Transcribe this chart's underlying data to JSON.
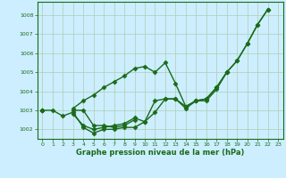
{
  "x": [
    0,
    1,
    2,
    3,
    4,
    5,
    6,
    7,
    8,
    9,
    10,
    11,
    12,
    13,
    14,
    15,
    16,
    17,
    18,
    19,
    20,
    21,
    22,
    23
  ],
  "series1": [
    1003.0,
    1003.0,
    1002.7,
    1002.9,
    1002.1,
    1001.8,
    1002.0,
    1002.0,
    1002.1,
    1002.1,
    1002.4,
    1003.5,
    1003.6,
    1003.6,
    1003.1,
    1003.5,
    1003.5,
    1004.1,
    1005.0,
    1005.6,
    1006.5,
    1007.5,
    1008.3,
    null
  ],
  "series2": [
    1003.0,
    null,
    null,
    1003.0,
    1003.0,
    1002.2,
    1002.2,
    1002.1,
    1002.2,
    1002.5,
    null,
    null,
    null,
    null,
    null,
    null,
    null,
    null,
    null,
    null,
    null,
    null,
    null,
    null
  ],
  "series3": [
    1003.0,
    null,
    null,
    1002.8,
    1002.2,
    1002.0,
    1002.1,
    1002.2,
    1002.3,
    1002.6,
    1002.4,
    1002.9,
    1003.6,
    1003.6,
    1003.2,
    1003.5,
    1003.6,
    1004.2,
    1005.0,
    1005.6,
    1006.5,
    1007.5,
    1008.3,
    null
  ],
  "series4": [
    1003.0,
    null,
    null,
    1003.1,
    1003.5,
    1003.8,
    1004.2,
    1004.5,
    1004.8,
    1005.2,
    1005.3,
    1005.0,
    1005.5,
    1004.4,
    1003.2,
    1003.5,
    1003.6,
    1004.2,
    1005.0,
    null,
    null,
    null,
    null,
    null
  ],
  "ylim": [
    1001.5,
    1008.7
  ],
  "xlim": [
    -0.5,
    23.5
  ],
  "yticks": [
    1002,
    1003,
    1004,
    1005,
    1006,
    1007,
    1008
  ],
  "xticks": [
    0,
    1,
    2,
    3,
    4,
    5,
    6,
    7,
    8,
    9,
    10,
    11,
    12,
    13,
    14,
    15,
    16,
    17,
    18,
    19,
    20,
    21,
    22,
    23
  ],
  "xlabel": "Graphe pression niveau de la mer (hPa)",
  "line_color": "#1a6b1a",
  "bg_color": "#cceeff",
  "grid_color": "#b0ccb0",
  "marker": "D",
  "marker_size": 2.5,
  "line_width": 1.0
}
